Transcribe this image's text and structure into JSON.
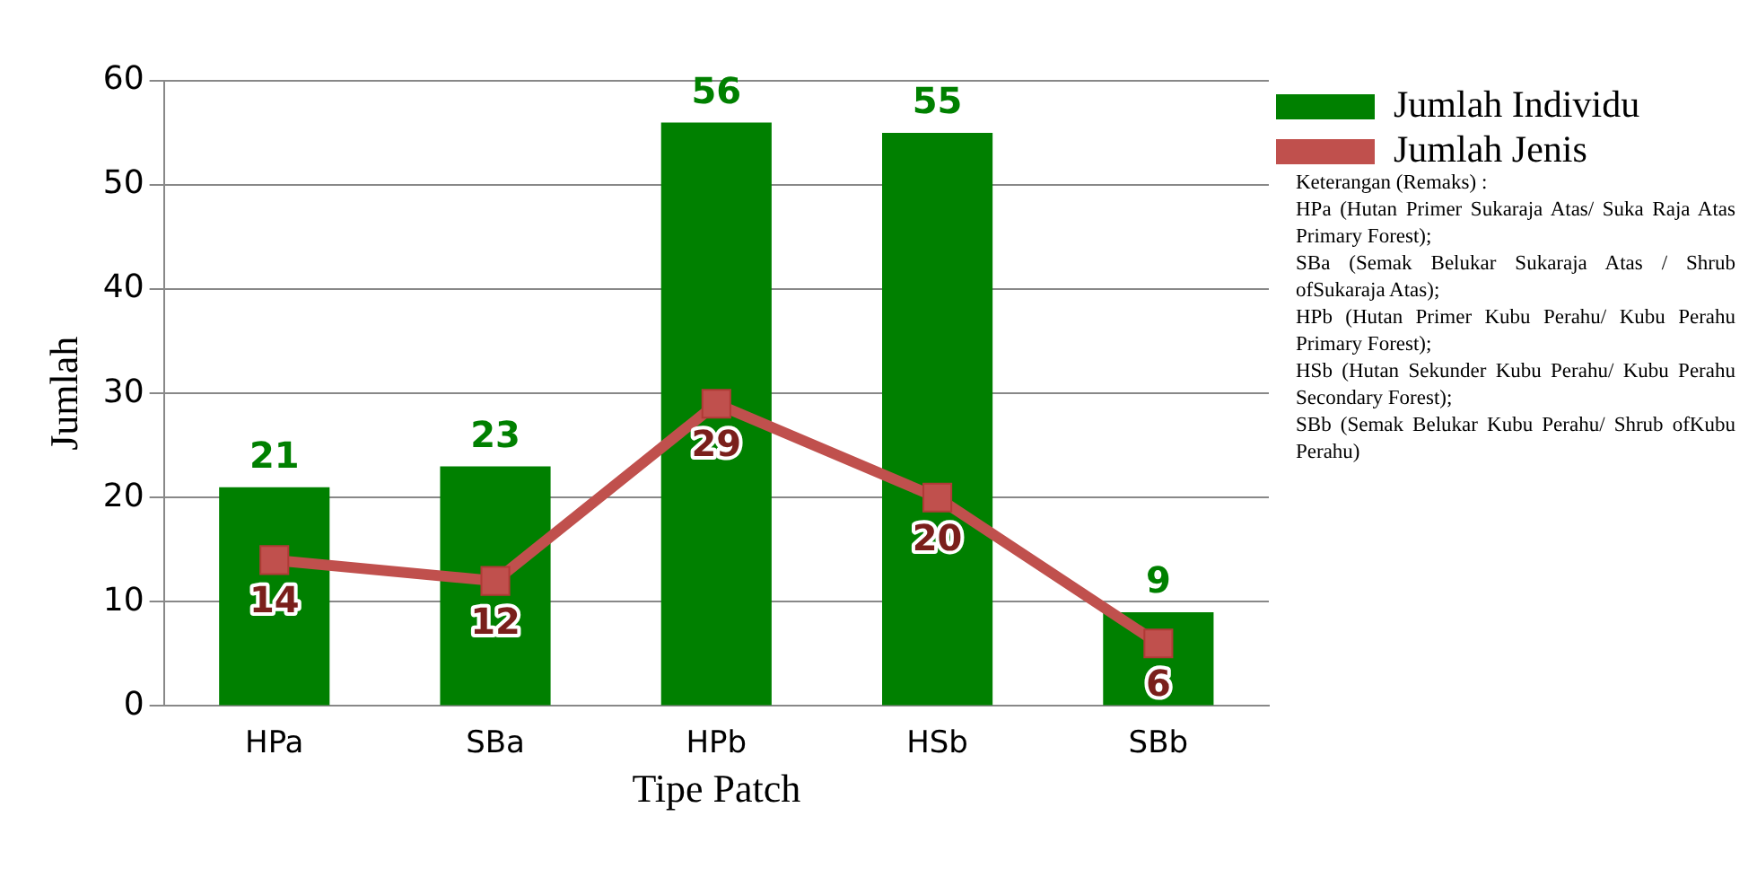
{
  "chart_data": {
    "type": "bar",
    "xlabel": "Tipe Patch",
    "ylabel": "Jumlah",
    "categories": [
      "HPa",
      "SBa",
      "HPb",
      "HSb",
      "SBb"
    ],
    "series": [
      {
        "name": "Jumlah Individu",
        "color": "#008000",
        "values": [
          21,
          23,
          56,
          55,
          9
        ]
      },
      {
        "name": "Jumlah Jenis",
        "type": "line",
        "color": "#c0504d",
        "values": [
          14,
          12,
          29,
          20,
          6
        ],
        "marker": "square"
      }
    ],
    "ylim": [
      0,
      60
    ],
    "yticks": [
      0,
      10,
      20,
      30,
      40,
      50,
      60
    ],
    "grid": "y",
    "legend": "top right",
    "data_labels": true,
    "annotations": [
      "Keterangan (Remaks) :",
      "HPa (Hutan Primer Sukaraja Atas/ Suka Raja Atas Primary Forest);",
      "SBa (Semak Belukar Sukaraja Atas / Shrub ofSukaraja Atas);",
      "HPb (Hutan Primer Kubu Perahu/ Kubu Perahu Primary Forest);",
      "HSb (Hutan Sekunder Kubu Perahu/ Kubu Perahu Secondary Forest);",
      "SBb (Semak Belukar Kubu Perahu/ Shrub ofKubu Perahu)"
    ]
  }
}
